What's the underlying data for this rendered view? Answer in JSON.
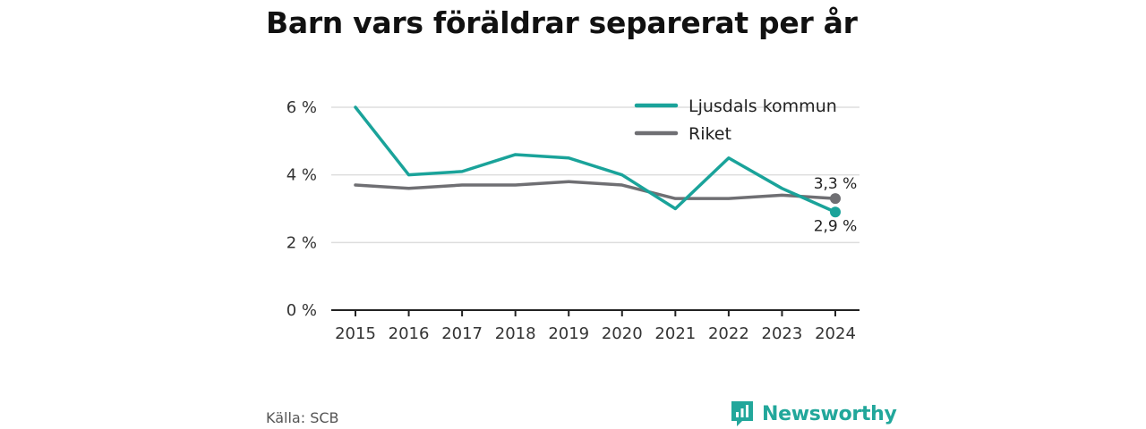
{
  "title": "Barn vars föräldrar separerat per år",
  "source": "Källa: SCB",
  "brand": {
    "name": "Newsworthy",
    "icon": "newsworthy-logo-icon",
    "color": "#22a79b"
  },
  "colors": {
    "teal": "#1aa39a",
    "gray": "#6f6f73",
    "grid": "#dddddd",
    "axis": "#222222"
  },
  "chart_data": {
    "type": "line",
    "title": "Barn vars föräldrar separerat per år",
    "xlabel": "",
    "ylabel": "",
    "x": [
      "2015",
      "2016",
      "2017",
      "2018",
      "2019",
      "2020",
      "2021",
      "2022",
      "2023",
      "2024"
    ],
    "ylim": [
      0,
      6
    ],
    "yticks": [
      0,
      2,
      4,
      6
    ],
    "ytick_labels": [
      "0 %",
      "2 %",
      "4 %",
      "6 %"
    ],
    "grid": true,
    "legend_position": "top-right",
    "series": [
      {
        "name": "Ljusdals kommun",
        "color": "#1aa39a",
        "values": [
          6.0,
          4.0,
          4.1,
          4.6,
          4.5,
          4.0,
          3.0,
          4.5,
          3.6,
          2.9
        ],
        "end_label": "2,9 %"
      },
      {
        "name": "Riket",
        "color": "#6f6f73",
        "values": [
          3.7,
          3.6,
          3.7,
          3.7,
          3.8,
          3.7,
          3.3,
          3.3,
          3.4,
          3.3
        ],
        "end_label": "3,3 %"
      }
    ]
  }
}
